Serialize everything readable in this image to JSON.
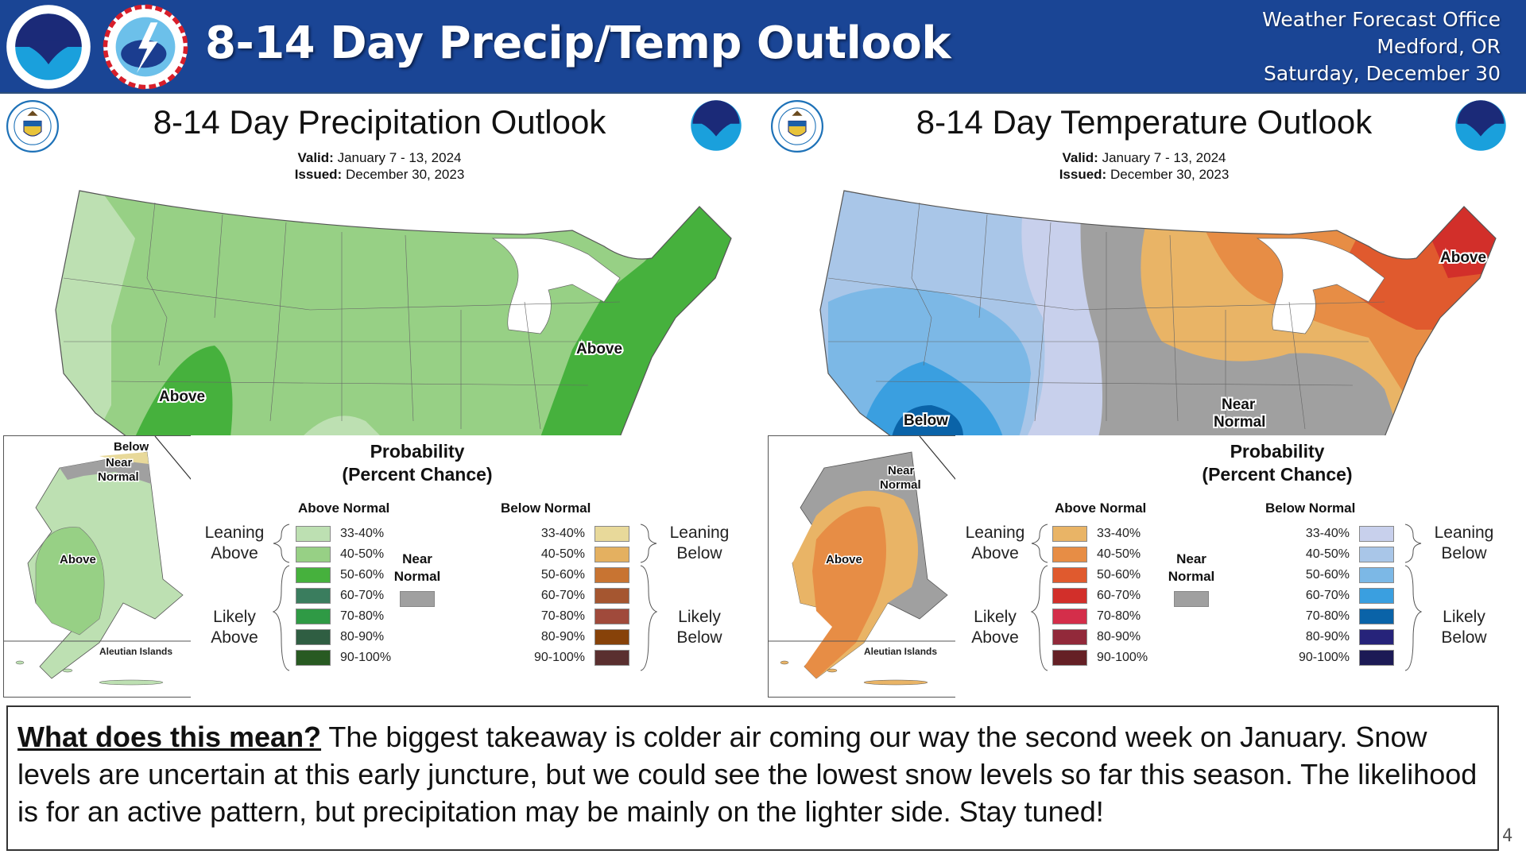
{
  "header": {
    "title": "8-14 Day Precip/Temp Outlook",
    "office_line1": "Weather Forecast Office",
    "office_line2": "Medford, OR",
    "date": "Saturday, December 30",
    "logos": [
      "noaa-logo",
      "nws-logo"
    ],
    "background_color": "#1a4595"
  },
  "precip_panel": {
    "title": "8-14 Day Precipitation Outlook",
    "valid_label": "Valid:",
    "valid_value": "January 7 - 13, 2024",
    "issued_label": "Issued:",
    "issued_value": "December 30, 2023",
    "map_labels": [
      "Above",
      "Above"
    ],
    "alaska": {
      "labels": [
        "Below",
        "Near",
        "Normal",
        "Above"
      ],
      "aleutian_label": "Aleutian Islands"
    },
    "legend": {
      "title_line1": "Probability",
      "title_line2": "(Percent Chance)",
      "above_header": "Above Normal",
      "below_header": "Below Normal",
      "near_line1": "Near",
      "near_line2": "Normal",
      "near_color": "#a0a0a0",
      "leaning_above": [
        "Leaning",
        "Above"
      ],
      "likely_above": [
        "Likely",
        "Above"
      ],
      "leaning_below": [
        "Leaning",
        "Below"
      ],
      "likely_below": [
        "Likely",
        "Below"
      ],
      "above": [
        {
          "range": "33-40%",
          "color": "#bde0b2"
        },
        {
          "range": "40-50%",
          "color": "#97d085"
        },
        {
          "range": "50-60%",
          "color": "#46b13d"
        },
        {
          "range": "60-70%",
          "color": "#3a7d5e"
        },
        {
          "range": "70-80%",
          "color": "#2f9a45"
        },
        {
          "range": "80-90%",
          "color": "#2f5e42"
        },
        {
          "range": "90-100%",
          "color": "#285a22"
        }
      ],
      "below": [
        {
          "range": "33-40%",
          "color": "#e8d99a"
        },
        {
          "range": "40-50%",
          "color": "#e4b060"
        },
        {
          "range": "50-60%",
          "color": "#c87432"
        },
        {
          "range": "60-70%",
          "color": "#a55630"
        },
        {
          "range": "70-80%",
          "color": "#a04a3b"
        },
        {
          "range": "80-90%",
          "color": "#874209"
        },
        {
          "range": "90-100%",
          "color": "#5a2f2f"
        }
      ]
    }
  },
  "temp_panel": {
    "title": "8-14 Day Temperature Outlook",
    "valid_label": "Valid:",
    "valid_value": "January 7 - 13, 2024",
    "issued_label": "Issued:",
    "issued_value": "December 30, 2023",
    "map_labels": [
      "Above",
      "Below",
      "Near",
      "Normal"
    ],
    "alaska": {
      "labels": [
        "Near",
        "Normal",
        "Above"
      ],
      "aleutian_label": "Aleutian Islands"
    },
    "legend": {
      "title_line1": "Probability",
      "title_line2": "(Percent Chance)",
      "above_header": "Above Normal",
      "below_header": "Below Normal",
      "near_line1": "Near",
      "near_line2": "Normal",
      "near_color": "#a0a0a0",
      "leaning_above": [
        "Leaning",
        "Above"
      ],
      "likely_above": [
        "Likely",
        "Above"
      ],
      "leaning_below": [
        "Leaning",
        "Below"
      ],
      "likely_below": [
        "Likely",
        "Below"
      ],
      "above": [
        {
          "range": "33-40%",
          "color": "#e9b466"
        },
        {
          "range": "40-50%",
          "color": "#e78d45"
        },
        {
          "range": "50-60%",
          "color": "#e05a2e"
        },
        {
          "range": "60-70%",
          "color": "#d22f2a"
        },
        {
          "range": "70-80%",
          "color": "#d42e4a"
        },
        {
          "range": "80-90%",
          "color": "#92293a"
        },
        {
          "range": "90-100%",
          "color": "#652025"
        }
      ],
      "below": [
        {
          "range": "33-40%",
          "color": "#c8d0ec"
        },
        {
          "range": "40-50%",
          "color": "#a9c6e8"
        },
        {
          "range": "50-60%",
          "color": "#7cb8e6"
        },
        {
          "range": "60-70%",
          "color": "#3a9fe0"
        },
        {
          "range": "70-80%",
          "color": "#0a63a8"
        },
        {
          "range": "80-90%",
          "color": "#26237a"
        },
        {
          "range": "90-100%",
          "color": "#1c1a55"
        }
      ]
    }
  },
  "summary": {
    "lead": "What does this mean?",
    "text": " The biggest takeaway is colder air coming our way the second week on January. Snow levels are uncertain at this early juncture, but we could see the lowest snow levels so far this season. The likelihood is for an active pattern, but precipitation may be mainly on the lighter side. Stay tuned!"
  },
  "page_number": "4"
}
